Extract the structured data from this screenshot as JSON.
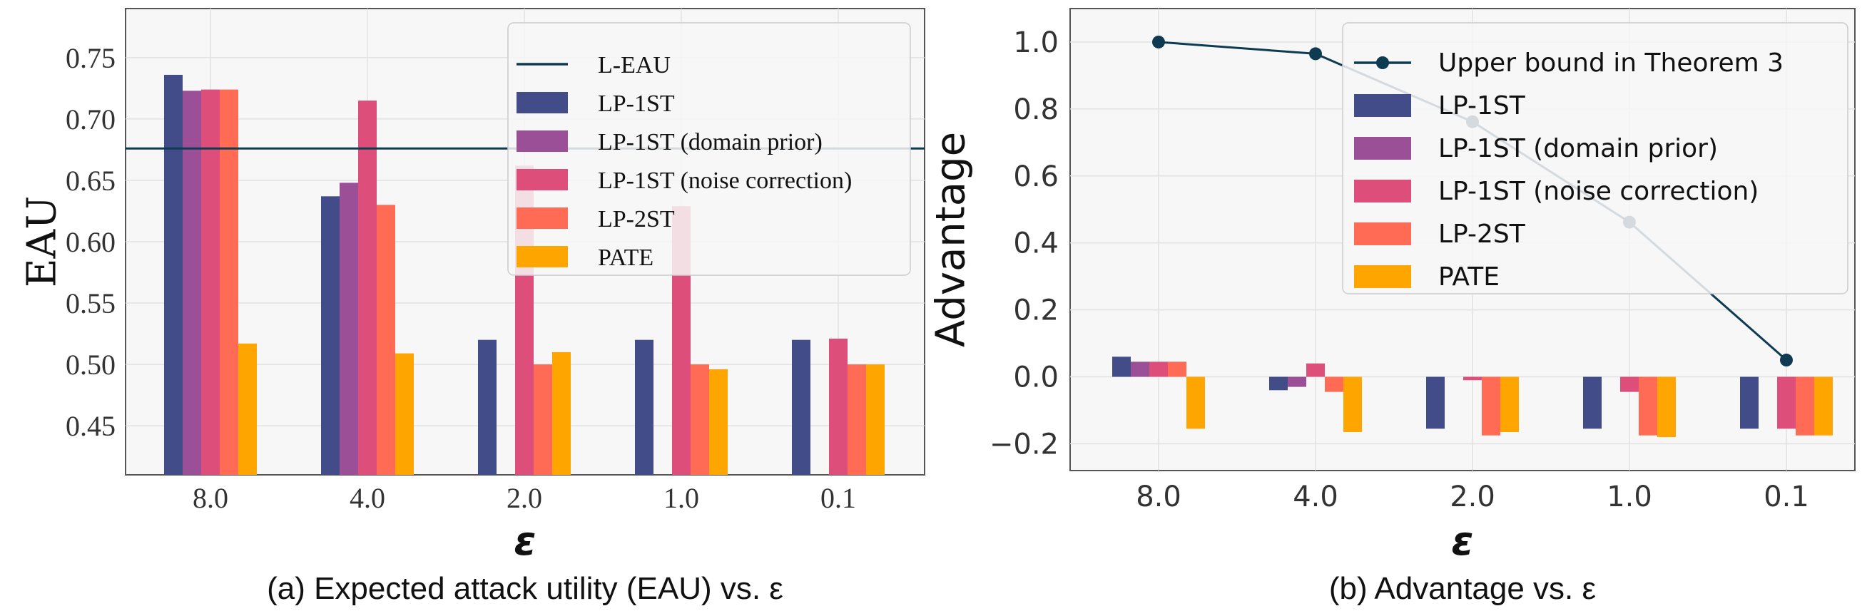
{
  "chart_data": [
    {
      "type": "bar",
      "panel": "a",
      "caption": "(a) Expected attack utility (EAU) vs. ε",
      "xlabel": "ε",
      "ylabel": "EAU",
      "categories": [
        "8.0",
        "4.0",
        "2.0",
        "1.0",
        "0.1"
      ],
      "ylim": [
        0.41,
        0.79
      ],
      "yticks": [
        0.45,
        0.5,
        0.55,
        0.6,
        0.65,
        0.7,
        0.75
      ],
      "ytick_labels": [
        "0.45",
        "0.50",
        "0.55",
        "0.60",
        "0.65",
        "0.70",
        "0.75"
      ],
      "grid": true,
      "legend_position": "top-right",
      "hline": {
        "name": "L-EAU",
        "value": 0.676,
        "color": "#0e3a52"
      },
      "series": [
        {
          "name": "LP-1ST",
          "color": "#424c88",
          "values": [
            0.736,
            0.637,
            0.52,
            0.52,
            0.52
          ]
        },
        {
          "name": "LP-1ST (domain prior)",
          "color": "#9b4f96",
          "values": [
            0.723,
            0.648,
            null,
            null,
            null
          ]
        },
        {
          "name": "LP-1ST (noise correction)",
          "color": "#dd4f7a",
          "values": [
            0.724,
            0.715,
            0.662,
            0.629,
            0.521
          ]
        },
        {
          "name": "LP-2ST",
          "color": "#ff6b55",
          "values": [
            0.724,
            0.63,
            0.5,
            0.5,
            0.5
          ]
        },
        {
          "name": "PATE",
          "color": "#ffa500",
          "values": [
            0.517,
            0.509,
            0.51,
            0.496,
            0.5
          ]
        }
      ]
    },
    {
      "type": "bar",
      "panel": "b",
      "caption": "(b) Advantage vs. ε",
      "xlabel": "ε",
      "ylabel": "Advantage",
      "categories": [
        "8.0",
        "4.0",
        "2.0",
        "1.0",
        "0.1"
      ],
      "ylim": [
        -0.28,
        1.1
      ],
      "yticks": [
        -0.2,
        0.0,
        0.2,
        0.4,
        0.6,
        0.8,
        1.0
      ],
      "ytick_labels": [
        "−0.2",
        "0.0",
        "0.2",
        "0.4",
        "0.6",
        "0.8",
        "1.0"
      ],
      "grid": true,
      "legend_position": "top-right",
      "line": {
        "name": "Upper bound in Theorem 3",
        "color": "#0e3a52",
        "values": [
          1.0,
          0.965,
          0.762,
          0.462,
          0.05
        ]
      },
      "series": [
        {
          "name": "LP-1ST",
          "color": "#424c88",
          "values": [
            0.06,
            -0.04,
            -0.155,
            -0.155,
            -0.155
          ]
        },
        {
          "name": "LP-1ST (domain prior)",
          "color": "#9b4f96",
          "values": [
            0.045,
            -0.03,
            null,
            null,
            null
          ]
        },
        {
          "name": "LP-1ST (noise correction)",
          "color": "#dd4f7a",
          "values": [
            0.045,
            0.04,
            -0.01,
            -0.045,
            -0.155
          ]
        },
        {
          "name": "LP-2ST",
          "color": "#ff6b55",
          "values": [
            0.045,
            -0.045,
            -0.175,
            -0.175,
            -0.175
          ]
        },
        {
          "name": "PATE",
          "color": "#ffa500",
          "values": [
            -0.155,
            -0.165,
            -0.165,
            -0.18,
            -0.175
          ]
        }
      ]
    }
  ]
}
